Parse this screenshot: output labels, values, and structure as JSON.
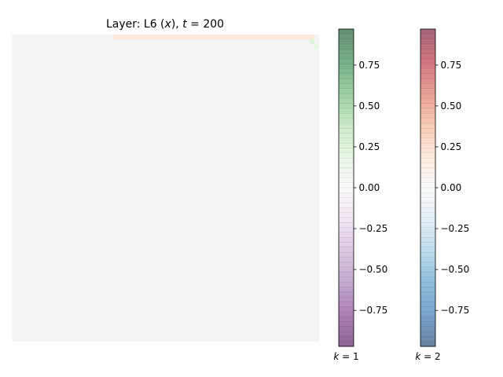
{
  "title": {
    "prefix": "Layer: L6 (",
    "var": "x",
    "middle": "), ",
    "tvar": "t",
    "suffix": " = 200"
  },
  "chart_data": {
    "type": "heatmap",
    "grid_size": 64,
    "background_value": 0.0,
    "background_color": "#f5f5f5",
    "edge_band": {
      "row": 0,
      "col_start": 21,
      "col_end": 62,
      "k1_value": 0.0,
      "k2_value": 0.2
    },
    "corner_cells": [
      {
        "row": 1,
        "col": 62,
        "k1_value": 0.25,
        "k2_value": 0.0
      },
      {
        "row": 2,
        "col": 63,
        "k1_value": 0.2,
        "k2_value": 0.0
      }
    ],
    "colorbars": [
      {
        "name": "$k=1$",
        "label_prefix": "k",
        "label_suffix": " = 1",
        "colormap": "PRGn",
        "colors": [
          "#40004b",
          "#762a83",
          "#9970ab",
          "#c2a5cf",
          "#e7d4e8",
          "#f7f7f7",
          "#d9f0d3",
          "#a6dba0",
          "#5aae61",
          "#1b7837",
          "#00441b"
        ],
        "range": [
          -0.97,
          0.97
        ],
        "ticks": [
          -0.75,
          -0.5,
          -0.25,
          0.0,
          0.25,
          0.5,
          0.75
        ],
        "tick_labels": [
          "−0.75",
          "−0.50",
          "−0.25",
          "0.00",
          "0.25",
          "0.50",
          "0.75"
        ]
      },
      {
        "name": "$k=2$",
        "label_prefix": "k",
        "label_suffix": " = 2",
        "colormap": "RdBu_r",
        "colors": [
          "#053061",
          "#2166ac",
          "#4393c3",
          "#92c5de",
          "#d1e5f0",
          "#f7f7f7",
          "#fddbc7",
          "#f4a582",
          "#d6604d",
          "#b2182b",
          "#67001f"
        ],
        "range": [
          -0.97,
          0.97
        ],
        "ticks": [
          -0.75,
          -0.5,
          -0.25,
          0.0,
          0.25,
          0.5,
          0.75
        ],
        "tick_labels": [
          "−0.75",
          "−0.50",
          "−0.25",
          "0.00",
          "0.25",
          "0.50",
          "0.75"
        ]
      }
    ]
  }
}
